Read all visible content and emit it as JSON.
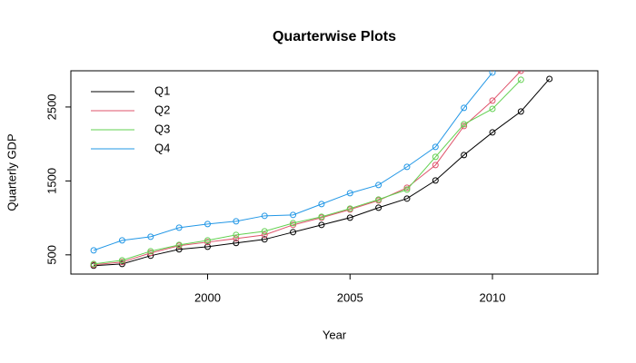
{
  "chart_data": {
    "type": "line",
    "title": "Quarterwise Plots",
    "x_label": "Year",
    "y_label": "Quarterly GDP",
    "x": [
      1996,
      1997,
      1998,
      1999,
      2000,
      2001,
      2002,
      2003,
      2004,
      2005,
      2006,
      2007,
      2008,
      2009,
      2010,
      2011,
      2012
    ],
    "series": [
      {
        "name": "Q1",
        "color": "#000000",
        "values": [
          353,
          377,
          488,
          574,
          610,
          660,
          709,
          807,
          905,
          1003,
          1138,
          1261,
          1506,
          1850,
          2156,
          2439,
          2880
        ]
      },
      {
        "name": "Q2",
        "color": "#DF536B",
        "values": [
          365,
          402,
          525,
          623,
          672,
          721,
          770,
          905,
          1003,
          1113,
          1236,
          1408,
          1715,
          2242,
          2586,
          2990,
          null
        ]
      },
      {
        "name": "Q3",
        "color": "#61D04F",
        "values": [
          377,
          426,
          549,
          635,
          696,
          770,
          819,
          929,
          1015,
          1126,
          1248,
          1383,
          1825,
          2267,
          2475,
          2868,
          null
        ]
      },
      {
        "name": "Q4",
        "color": "#2297E6",
        "values": [
          561,
          696,
          745,
          868,
          917,
          954,
          1028,
          1040,
          1187,
          1334,
          1445,
          1690,
          1960,
          2488,
          2966,
          null,
          null
        ]
      }
    ],
    "xlim": [
      1995.2,
      2013.7
    ],
    "xticks": [
      2000,
      2005,
      2010
    ],
    "ylim": [
      240,
      2990
    ],
    "yticks": [
      500,
      1500,
      2500
    ],
    "legend": "top-left"
  }
}
